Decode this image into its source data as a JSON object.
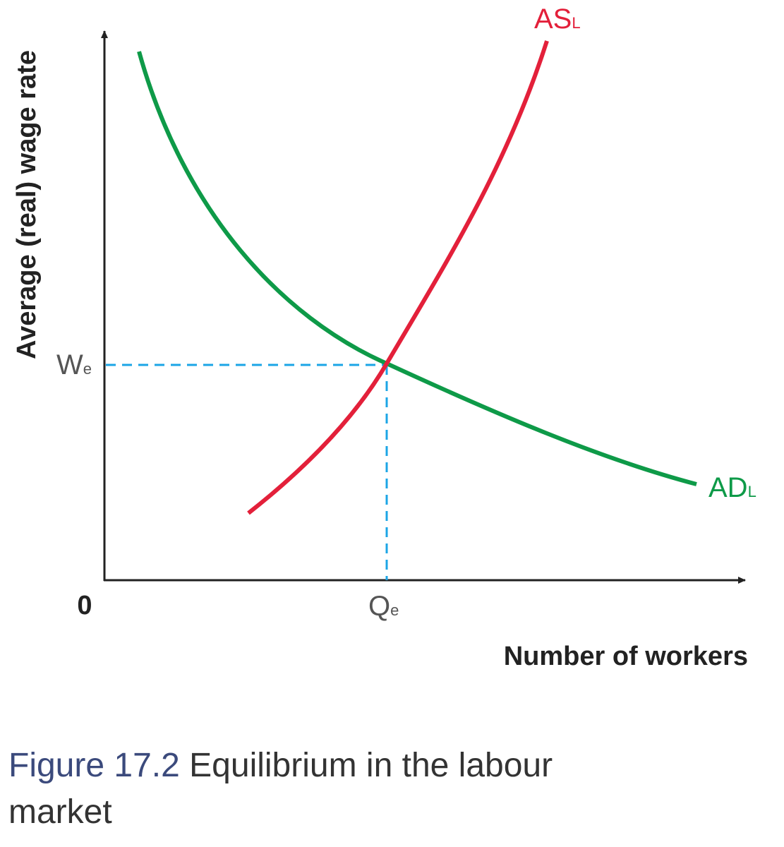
{
  "axes": {
    "y_label": "Average (real) wage rate",
    "x_label": "Number of workers",
    "origin": "0"
  },
  "curves": [
    {
      "label": "AS",
      "subscript": "L"
    },
    {
      "label": "AD",
      "subscript": "L"
    }
  ],
  "equilibrium": {
    "wage": {
      "label": "W",
      "subscript": "e"
    },
    "quantity": {
      "label": "Q",
      "subscript": "e"
    }
  },
  "caption": {
    "number": "Figure 17.2",
    "text": "Equilibrium in the labour market"
  }
}
